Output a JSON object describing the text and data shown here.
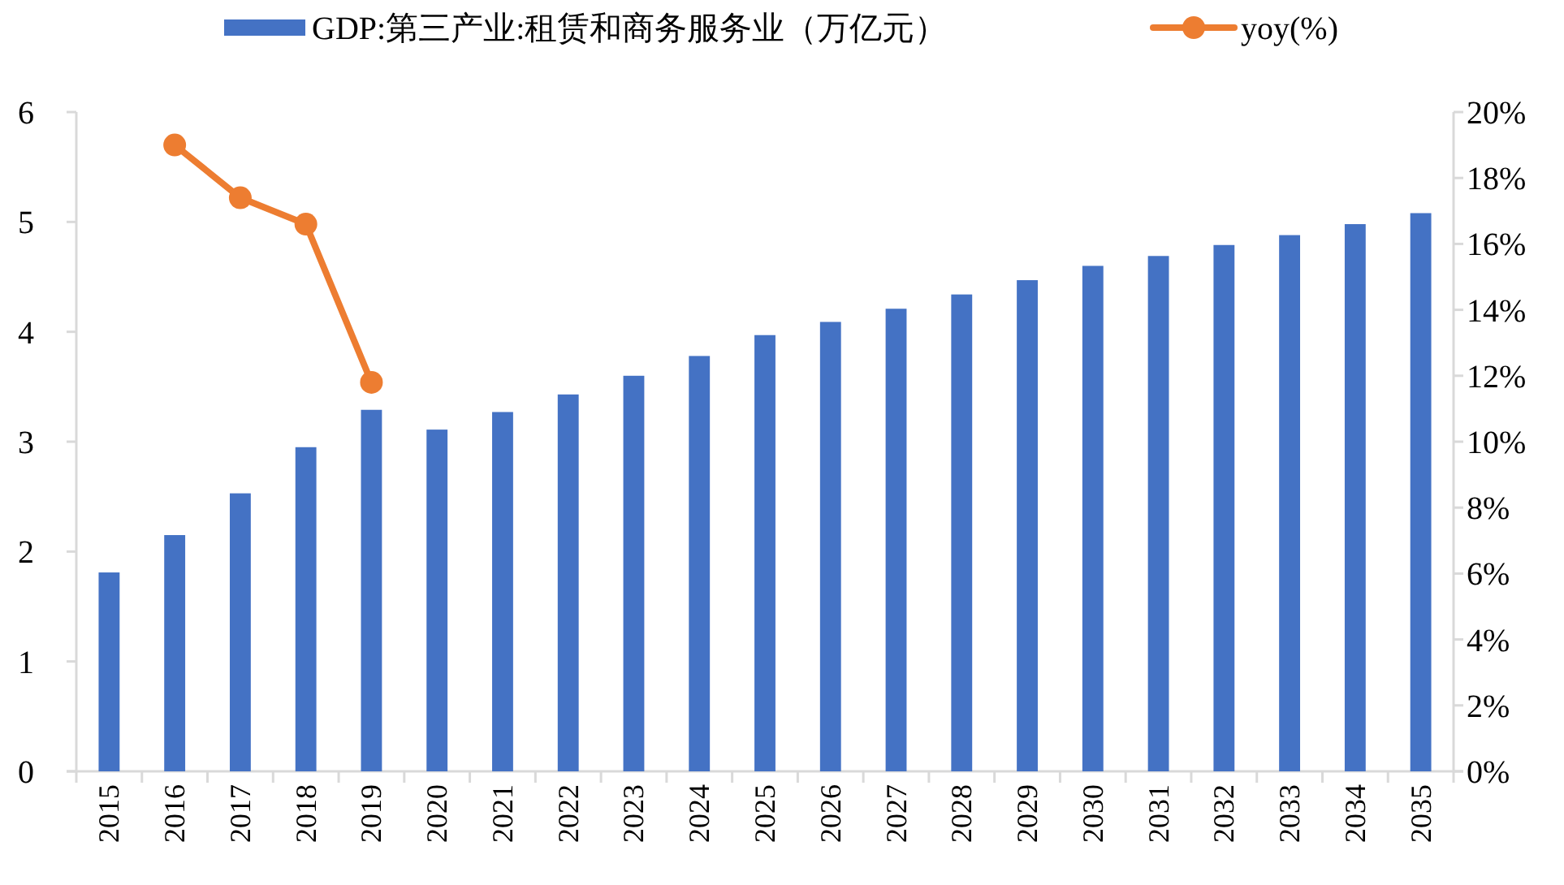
{
  "chart_data": {
    "type": "bar",
    "categories": [
      "2015",
      "2016",
      "2017",
      "2018",
      "2019",
      "2020",
      "2021",
      "2022",
      "2023",
      "2024",
      "2025",
      "2026",
      "2027",
      "2028",
      "2029",
      "2030",
      "2031",
      "2032",
      "2033",
      "2034",
      "2035"
    ],
    "series": [
      {
        "name": "GDP:第三产业:租赁和商务服务业（万亿元）",
        "color": "#4472c4",
        "values": [
          1.81,
          2.15,
          2.53,
          2.95,
          3.29,
          3.11,
          3.27,
          3.43,
          3.6,
          3.78,
          3.97,
          4.09,
          4.21,
          4.34,
          4.47,
          4.6,
          4.69,
          4.79,
          4.88,
          4.98,
          5.08
        ]
      },
      {
        "name": "yoy(%)",
        "type": "line",
        "axis": "y2",
        "color": "#ed7d31",
        "marker": "circle",
        "values": [
          null,
          19.0,
          17.4,
          16.6,
          11.8,
          null,
          null,
          null,
          null,
          null,
          null,
          null,
          null,
          null,
          null,
          null,
          null,
          null,
          null,
          null,
          null
        ]
      }
    ],
    "ylim": [
      0,
      6
    ],
    "yticks": [
      0,
      1,
      2,
      3,
      4,
      5,
      6
    ],
    "y2lim": [
      0,
      20
    ],
    "y2ticks": [
      {
        "value": 0,
        "label": "0%"
      },
      {
        "value": 2,
        "label": "2%"
      },
      {
        "value": 4,
        "label": "4%"
      },
      {
        "value": 6,
        "label": "6%"
      },
      {
        "value": 8,
        "label": "8%"
      },
      {
        "value": 10,
        "label": "10%"
      },
      {
        "value": 12,
        "label": "12%"
      },
      {
        "value": 14,
        "label": "14%"
      },
      {
        "value": 16,
        "label": "16%"
      },
      {
        "value": 18,
        "label": "18%"
      },
      {
        "value": 20,
        "label": "20%"
      }
    ],
    "grid": false,
    "legend": "top"
  }
}
